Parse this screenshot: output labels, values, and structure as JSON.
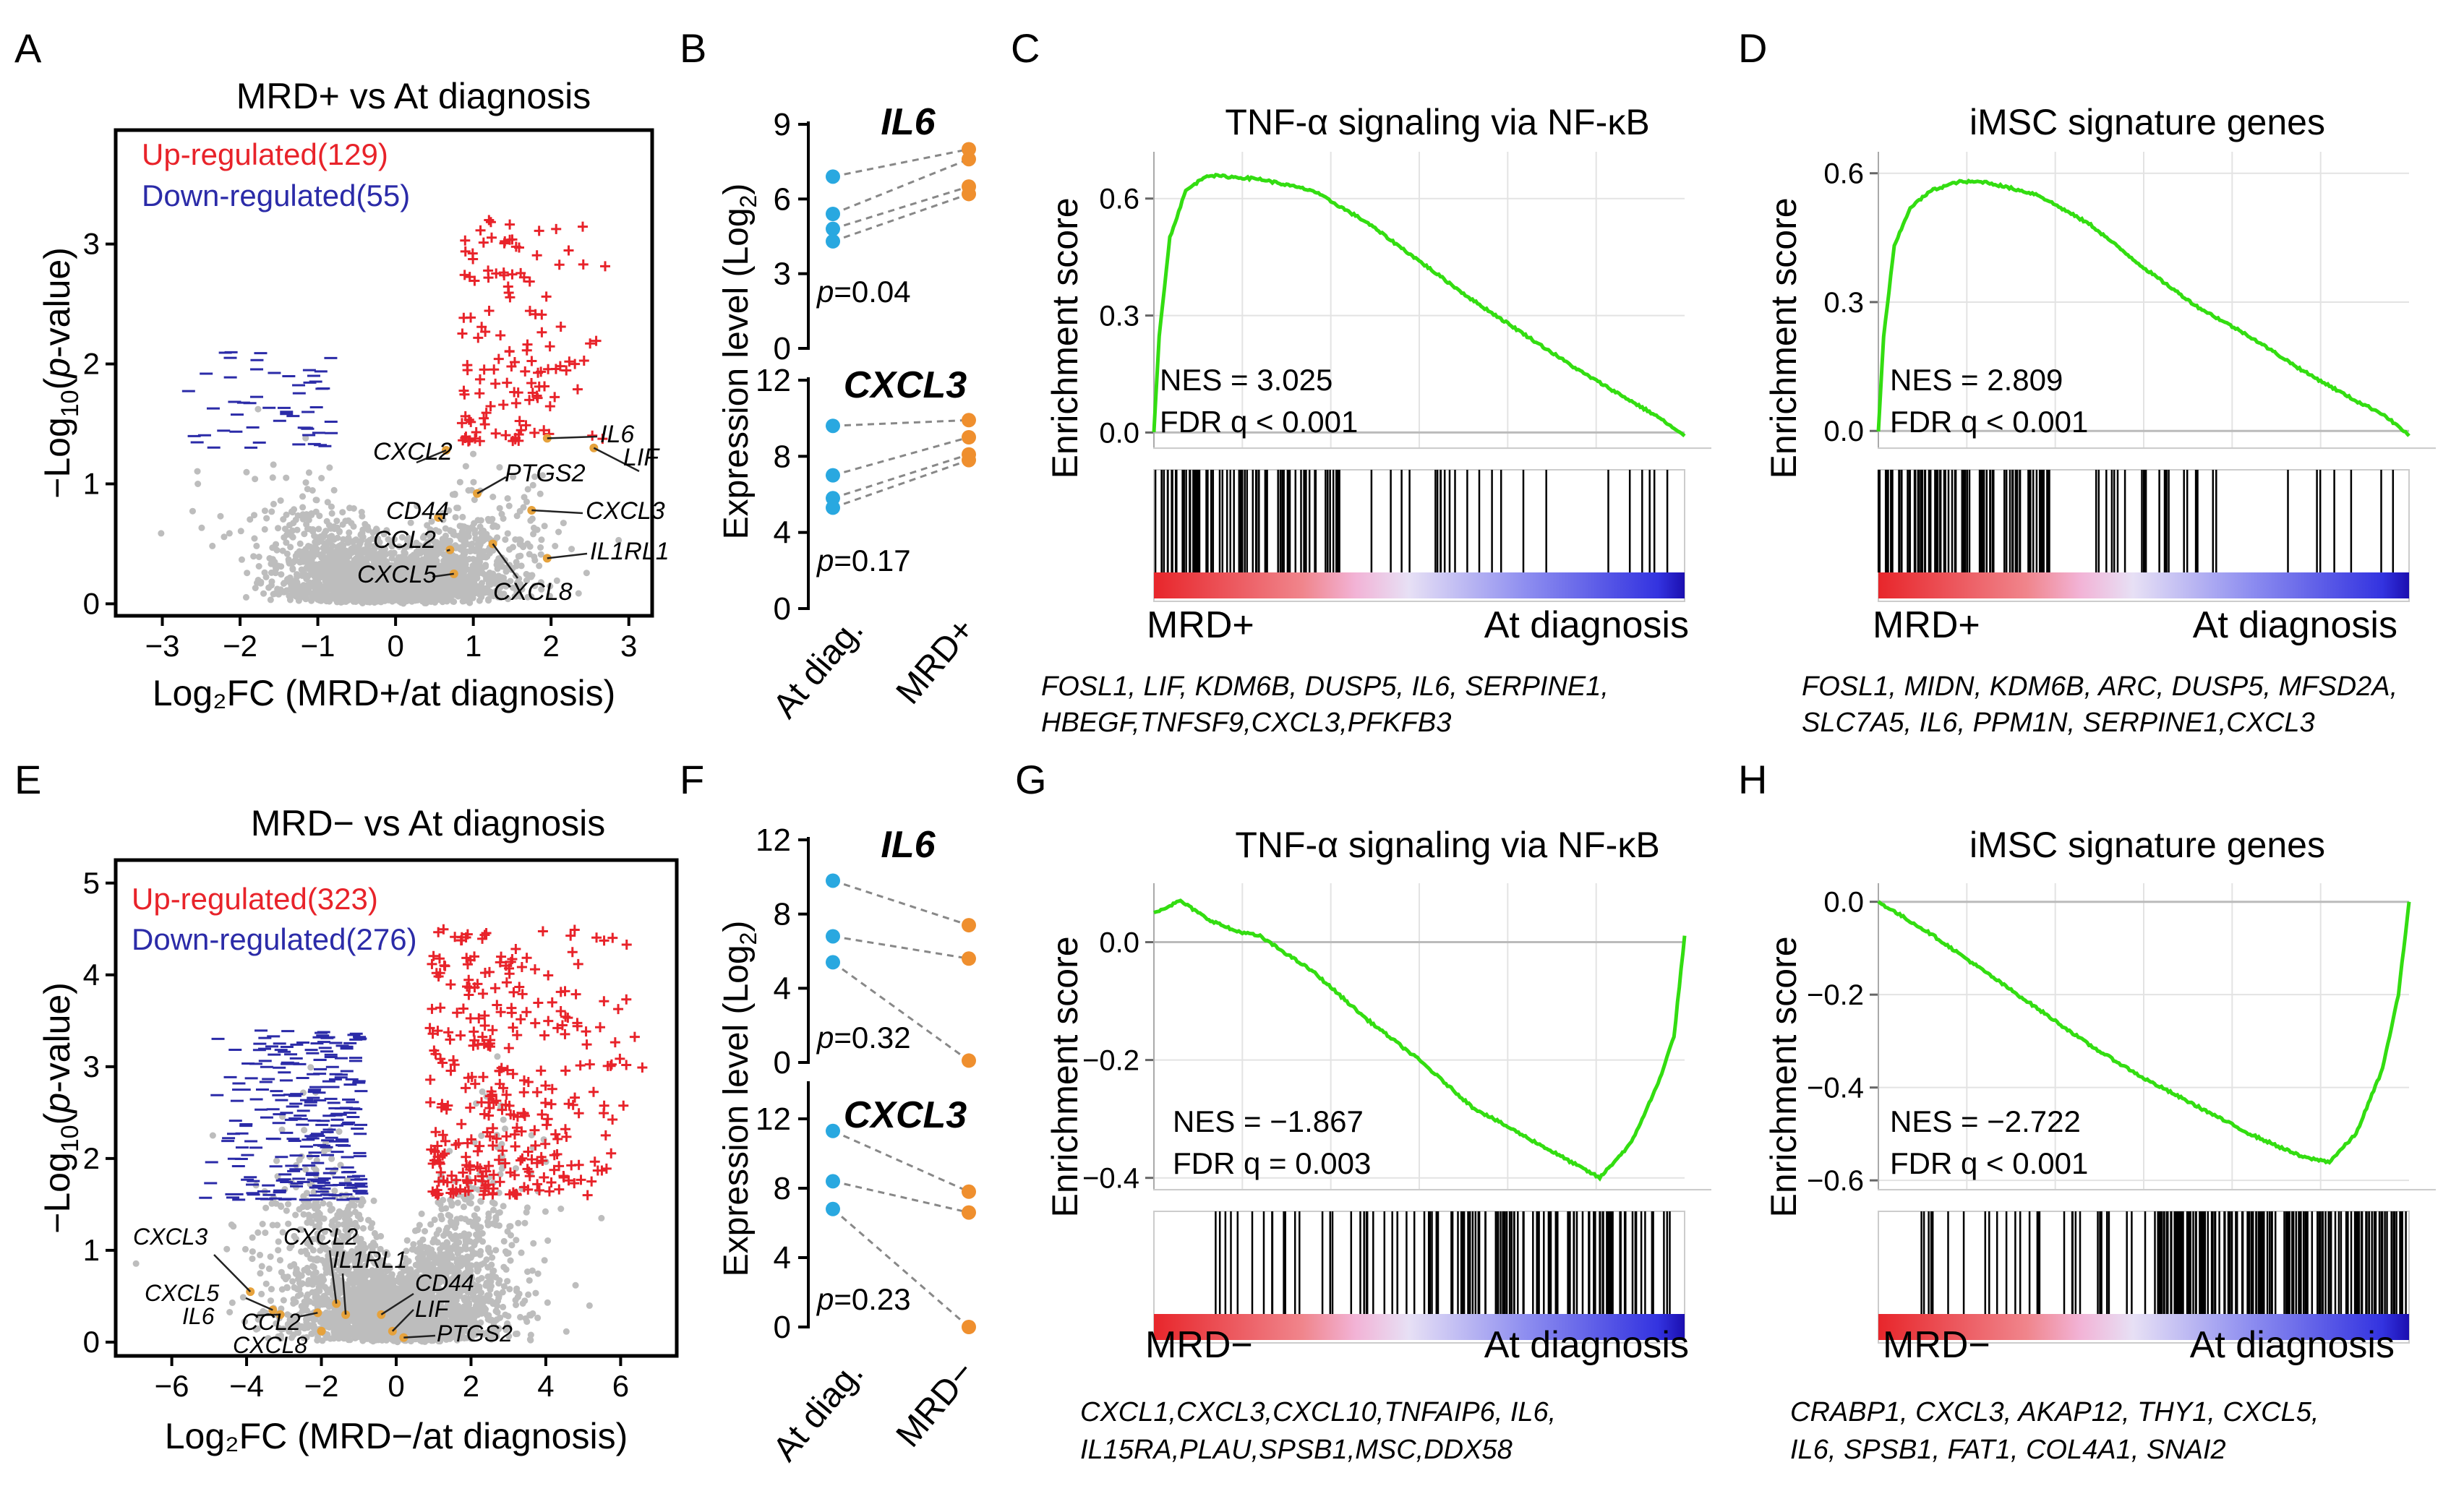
{
  "panels": {
    "A": {
      "letter": "A",
      "title": "MRD+ vs At diagnosis",
      "up_label": "Up-regulated(129)",
      "down_label": "Down-regulated(55)",
      "xlabel": "Log₂FC (MRD+/at diagnosis)",
      "ylabel_pre": "−Log",
      "ylabel_sub": "10",
      "ylabel_open": "(",
      "ylabel_p": "p",
      "ylabel_post": "-value)",
      "genes": [
        "CXCL2",
        "PTGS2",
        "CD44",
        "CCL2",
        "CXCL5",
        "CXCL8",
        "IL6",
        "LIF",
        "CXCL3",
        "IL1RL1"
      ]
    },
    "B": {
      "letter": "B",
      "gene_top": "IL6",
      "gene_bottom": "CXCL3",
      "p_top": "=0.04",
      "p_bottom": "=0.17",
      "p_letter": "p",
      "ylabel_pre": "Expression level (Log",
      "ylabel_sub": "2",
      "ylabel_post": ")",
      "x_left": "At diag.",
      "x_right": "MRD+"
    },
    "C": {
      "letter": "C",
      "title": "TNF-α signaling via NF-κB",
      "nes": "NES = 3.025",
      "fdr": "FDR q < 0.001",
      "left_label": "MRD+",
      "right_label": "At diagnosis",
      "genes_line1": "FOSL1, LIF, KDM6B, DUSP5, IL6, SERPINE1,",
      "genes_line2": "HBEGF,TNFSF9,CXCL3,PFKFB3"
    },
    "D": {
      "letter": "D",
      "title": "iMSC signature genes",
      "nes": "NES = 2.809",
      "fdr": "FDR q < 0.001",
      "left_label": "MRD+",
      "right_label": "At diagnosis",
      "genes_line1": "FOSL1, MIDN, KDM6B, ARC, DUSP5, MFSD2A,",
      "genes_line2": "SLC7A5, IL6, PPM1N, SERPINE1,CXCL3"
    },
    "E": {
      "letter": "E",
      "title": "MRD− vs At diagnosis",
      "up_label": "Up-regulated(323)",
      "down_label": "Down-regulated(276)",
      "xlabel": "Log₂FC (MRD−/at diagnosis)",
      "ylabel_pre": "−Log",
      "ylabel_sub": "10",
      "ylabel_open": "(",
      "ylabel_p": "p",
      "ylabel_post": "-value)",
      "genes": [
        "CXCL3",
        "CXCL2",
        "IL1RL1",
        "CD44",
        "CXCL5",
        "IL6",
        "CCL2",
        "CXCL8",
        "LIF",
        "PTGS2"
      ]
    },
    "F": {
      "letter": "F",
      "gene_top": "IL6",
      "gene_bottom": "CXCL3",
      "p_top": "=0.32",
      "p_bottom": "=0.23",
      "p_letter": "p",
      "ylabel_pre": "Expression level (Log",
      "ylabel_sub": "2",
      "ylabel_post": ")",
      "x_left": "At diag.",
      "x_right": "MRD−"
    },
    "G": {
      "letter": "G",
      "title": "TNF-α signaling via NF-κB",
      "nes": "NES = −1.867",
      "fdr": "FDR q = 0.003",
      "left_label": "MRD−",
      "right_label": "At diagnosis",
      "genes_line1": "CXCL1,CXCL3,CXCL10,TNFAIP6, IL6,",
      "genes_line2": "IL15RA,PLAU,SPSB1,MSC,DDX58"
    },
    "H": {
      "letter": "H",
      "title": "iMSC signature genes",
      "nes": "NES = −2.722",
      "fdr": "FDR q < 0.001",
      "left_label": "MRD−",
      "right_label": "At diagnosis",
      "genes_line1": "CRABP1, CXCL3, AKAP12, THY1, CXCL5,",
      "genes_line2": "IL6, SPSB1, FAT1, COL4A1, SNAI2"
    },
    "es_axis_label": "Enrichment score"
  },
  "colors": {
    "up": "#e8232a",
    "down": "#2b2ba8",
    "gray_points": "#bdbdbd",
    "highlight": "#e6a23c",
    "at_diag_dot": "#29a8e0",
    "mrd_dot": "#ef8f2e",
    "es_curve": "#33dd11",
    "grid": "#e3e3e3"
  },
  "chart_data": [
    {
      "id": "A",
      "type": "scatter",
      "title": "MRD+ vs At diagnosis",
      "xlabel": "Log₂FC (MRD+/at diagnosis)",
      "ylabel": "−Log10(p-value)",
      "xlim": [
        -3.6,
        3.3
      ],
      "ylim": [
        -0.1,
        3.95
      ],
      "xticks": [
        -3,
        -2,
        -1,
        0,
        1,
        2,
        3
      ],
      "yticks": [
        0,
        1,
        2,
        3
      ],
      "series": [
        {
          "name": "Up-regulated",
          "count": 129
        },
        {
          "name": "Down-regulated",
          "count": 55
        }
      ],
      "genes": [
        {
          "name": "CXCL2",
          "x": 0.65,
          "y": 1.28
        },
        {
          "name": "PTGS2",
          "x": 1.05,
          "y": 0.92
        },
        {
          "name": "CD44",
          "x": 0.55,
          "y": 0.72
        },
        {
          "name": "CCL2",
          "x": 0.7,
          "y": 0.45
        },
        {
          "name": "CXCL5",
          "x": 0.75,
          "y": 0.25
        },
        {
          "name": "CXCL8",
          "x": 1.25,
          "y": 0.5
        },
        {
          "name": "IL6",
          "x": 1.95,
          "y": 1.38
        },
        {
          "name": "LIF",
          "x": 2.55,
          "y": 1.3
        },
        {
          "name": "CXCL3",
          "x": 1.75,
          "y": 0.78
        },
        {
          "name": "IL1RL1",
          "x": 1.95,
          "y": 0.38
        }
      ]
    },
    {
      "id": "B",
      "type": "scatter",
      "ylabel": "Expression level (Log2)",
      "categories": [
        "At diag.",
        "MRD+"
      ],
      "subplots": [
        {
          "gene": "IL6",
          "p": 0.04,
          "ylim": [
            0,
            9
          ],
          "yticks": [
            0,
            3,
            6,
            9
          ],
          "pairs": [
            [
              6.9,
              8.0
            ],
            [
              5.4,
              7.6
            ],
            [
              4.8,
              6.5
            ],
            [
              4.3,
              6.2
            ]
          ]
        },
        {
          "gene": "CXCL3",
          "p": 0.17,
          "ylim": [
            0,
            12
          ],
          "yticks": [
            0,
            4,
            8,
            12
          ],
          "pairs": [
            [
              9.6,
              9.9
            ],
            [
              7.0,
              9.0
            ],
            [
              5.8,
              8.1
            ],
            [
              5.3,
              7.8
            ]
          ]
        }
      ]
    },
    {
      "id": "C",
      "type": "line",
      "title": "TNF-α signaling via NF-κB",
      "ylabel": "Enrichment score",
      "ylim": [
        -0.04,
        0.72
      ],
      "yticks": [
        0.0,
        0.3,
        0.6
      ],
      "nes": 3.025,
      "fdr": "< 0.001",
      "x_left": "MRD+",
      "x_right": "At diagnosis",
      "curve": [
        [
          0,
          0.0
        ],
        [
          0.01,
          0.25
        ],
        [
          0.03,
          0.5
        ],
        [
          0.06,
          0.62
        ],
        [
          0.1,
          0.66
        ],
        [
          0.2,
          0.65
        ],
        [
          0.3,
          0.62
        ],
        [
          0.4,
          0.54
        ],
        [
          0.5,
          0.44
        ],
        [
          0.6,
          0.34
        ],
        [
          0.7,
          0.25
        ],
        [
          0.8,
          0.16
        ],
        [
          0.9,
          0.08
        ],
        [
          0.95,
          0.04
        ],
        [
          1.0,
          -0.01
        ]
      ],
      "hits": [
        [
          0.0,
          0.35,
          0.7
        ],
        [
          0.35,
          0.75,
          0.15
        ],
        [
          0.75,
          1.0,
          0.08
        ]
      ]
    },
    {
      "id": "D",
      "type": "line",
      "title": "iMSC signature genes",
      "ylabel": "Enrichment score",
      "ylim": [
        -0.04,
        0.65
      ],
      "yticks": [
        0.0,
        0.3,
        0.6
      ],
      "nes": 2.809,
      "fdr": "< 0.001",
      "x_left": "MRD+",
      "x_right": "At diagnosis",
      "curve": [
        [
          0,
          0.0
        ],
        [
          0.01,
          0.22
        ],
        [
          0.03,
          0.43
        ],
        [
          0.06,
          0.52
        ],
        [
          0.1,
          0.56
        ],
        [
          0.15,
          0.58
        ],
        [
          0.2,
          0.58
        ],
        [
          0.3,
          0.55
        ],
        [
          0.4,
          0.48
        ],
        [
          0.5,
          0.38
        ],
        [
          0.6,
          0.29
        ],
        [
          0.7,
          0.22
        ],
        [
          0.8,
          0.14
        ],
        [
          0.9,
          0.07
        ],
        [
          0.95,
          0.04
        ],
        [
          1.0,
          -0.01
        ]
      ],
      "hits": [
        [
          0.0,
          0.32,
          0.85
        ],
        [
          0.32,
          0.4,
          0.1
        ],
        [
          0.4,
          0.62,
          0.3
        ],
        [
          0.62,
          1.0,
          0.08
        ]
      ]
    },
    {
      "id": "E",
      "type": "scatter",
      "title": "MRD− vs At diagnosis",
      "xlabel": "Log₂FC (MRD−/at diagnosis)",
      "ylabel": "−Log10(p-value)",
      "xlim": [
        -7.5,
        7.5
      ],
      "ylim": [
        -0.15,
        5.25
      ],
      "xticks": [
        -6,
        -4,
        -2,
        0,
        2,
        4,
        6
      ],
      "yticks": [
        0,
        1,
        2,
        3,
        4,
        5
      ],
      "series": [
        {
          "name": "Up-regulated",
          "count": 323
        },
        {
          "name": "Down-regulated",
          "count": 276
        }
      ],
      "genes": [
        {
          "name": "CXCL3",
          "x": -3.9,
          "y": 0.55
        },
        {
          "name": "CXCL2",
          "x": -1.6,
          "y": 0.42
        },
        {
          "name": "IL1RL1",
          "x": -1.35,
          "y": 0.3
        },
        {
          "name": "CD44",
          "x": -0.4,
          "y": 0.3
        },
        {
          "name": "CXCL5",
          "x": -3.3,
          "y": 0.35
        },
        {
          "name": "IL6",
          "x": -3.1,
          "y": 0.3
        },
        {
          "name": "CCL2",
          "x": -2.1,
          "y": 0.32
        },
        {
          "name": "CXCL8",
          "x": -2.0,
          "y": 0.12
        },
        {
          "name": "LIF",
          "x": -0.1,
          "y": 0.12
        },
        {
          "name": "PTGS2",
          "x": 0.2,
          "y": 0.05
        }
      ]
    },
    {
      "id": "F",
      "type": "scatter",
      "ylabel": "Expression level (Log2)",
      "categories": [
        "At diag.",
        "MRD−"
      ],
      "subplots": [
        {
          "gene": "IL6",
          "p": 0.32,
          "ylim": [
            0,
            12
          ],
          "yticks": [
            0,
            4,
            8,
            12
          ],
          "pairs": [
            [
              9.8,
              7.4
            ],
            [
              6.8,
              5.6
            ],
            [
              5.4,
              0.1
            ]
          ]
        },
        {
          "gene": "CXCL3",
          "p": 0.23,
          "ylim": [
            0,
            14
          ],
          "yticks": [
            0,
            4,
            8,
            12
          ],
          "pairs": [
            [
              11.3,
              7.8
            ],
            [
              8.4,
              6.6
            ],
            [
              6.8,
              0.0
            ]
          ]
        }
      ]
    },
    {
      "id": "G",
      "type": "line",
      "title": "TNF-α signaling via NF-κB",
      "ylabel": "Enrichment score",
      "ylim": [
        -0.42,
        0.1
      ],
      "yticks": [
        -0.4,
        -0.2,
        0.0
      ],
      "nes": -1.867,
      "fdr": "= 0.003",
      "x_left": "MRD−",
      "x_right": "At diagnosis",
      "curve": [
        [
          0,
          0.05
        ],
        [
          0.05,
          0.07
        ],
        [
          0.1,
          0.04
        ],
        [
          0.15,
          0.02
        ],
        [
          0.2,
          0.01
        ],
        [
          0.3,
          -0.05
        ],
        [
          0.4,
          -0.13
        ],
        [
          0.5,
          -0.2
        ],
        [
          0.6,
          -0.28
        ],
        [
          0.7,
          -0.33
        ],
        [
          0.8,
          -0.38
        ],
        [
          0.84,
          -0.4
        ],
        [
          0.9,
          -0.34
        ],
        [
          0.95,
          -0.24
        ],
        [
          0.98,
          -0.16
        ],
        [
          1.0,
          0.01
        ]
      ],
      "hits": [
        [
          0.0,
          0.15,
          0.08
        ],
        [
          0.15,
          0.55,
          0.25
        ],
        [
          0.55,
          1.0,
          0.6
        ]
      ]
    },
    {
      "id": "H",
      "type": "line",
      "title": "iMSC signature genes",
      "ylabel": "Enrichment score",
      "ylim": [
        -0.62,
        0.04
      ],
      "yticks": [
        -0.6,
        -0.4,
        -0.2,
        0.0
      ],
      "nes": -2.722,
      "fdr": "< 0.001",
      "x_left": "MRD−",
      "x_right": "At diagnosis",
      "curve": [
        [
          0,
          0.0
        ],
        [
          0.1,
          -0.07
        ],
        [
          0.2,
          -0.15
        ],
        [
          0.3,
          -0.23
        ],
        [
          0.4,
          -0.31
        ],
        [
          0.5,
          -0.38
        ],
        [
          0.6,
          -0.44
        ],
        [
          0.7,
          -0.5
        ],
        [
          0.8,
          -0.55
        ],
        [
          0.85,
          -0.56
        ],
        [
          0.9,
          -0.5
        ],
        [
          0.95,
          -0.36
        ],
        [
          0.98,
          -0.2
        ],
        [
          1.0,
          0.0
        ]
      ],
      "hits": [
        [
          0.0,
          0.08,
          0.0
        ],
        [
          0.08,
          0.5,
          0.25
        ],
        [
          0.5,
          1.0,
          0.95
        ]
      ]
    }
  ]
}
